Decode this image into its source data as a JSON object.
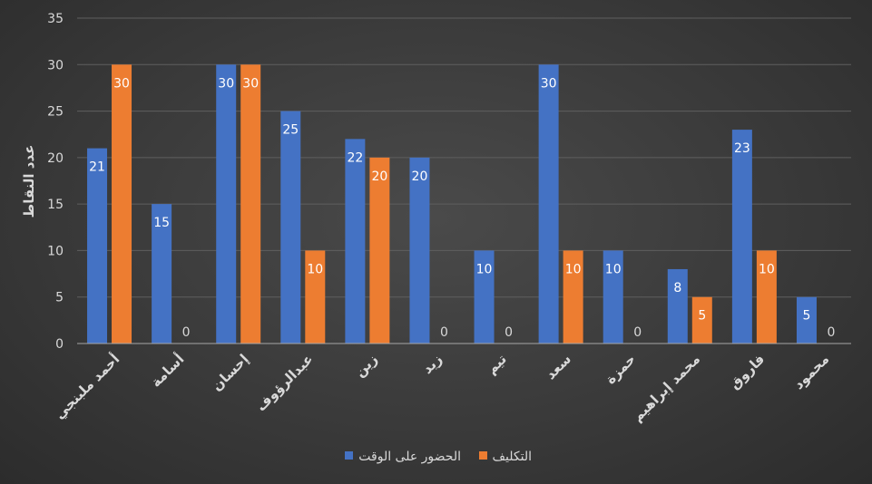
{
  "chart_data": {
    "type": "bar",
    "ylabel": "عدد النقاط",
    "ylim": [
      0,
      35
    ],
    "yticks": [
      0,
      5,
      10,
      15,
      20,
      25,
      30,
      35
    ],
    "grid": true,
    "legend_position": "bottom",
    "categories": [
      "أحمد ملبنجي",
      "أسامة",
      "إحسان",
      "عبدالرؤوف",
      "زين",
      "زيد",
      "تيم",
      "سعد",
      "حمزة",
      "محمد إبراهيم",
      "فاروق",
      "محمود"
    ],
    "series": [
      {
        "name": "الحضور على الوقت",
        "color": "#4472c4",
        "values": [
          21,
          15,
          30,
          25,
          22,
          20,
          10,
          30,
          10,
          8,
          23,
          5
        ]
      },
      {
        "name": "التكليف",
        "color": "#ed7d31",
        "values": [
          30,
          0,
          30,
          10,
          20,
          0,
          0,
          10,
          0,
          5,
          10,
          0
        ]
      }
    ]
  }
}
